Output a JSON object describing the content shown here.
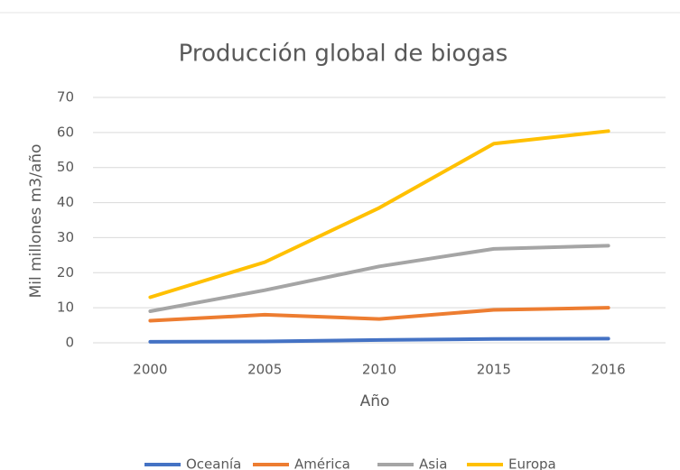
{
  "chart_data": {
    "type": "line",
    "title": "Producción global de biogas",
    "x_label": "Año",
    "y_label": "Mil millones  m3/año",
    "categories": [
      "2000",
      "2005",
      "2010",
      "2015",
      "2016"
    ],
    "series": [
      {
        "name": "Oceanía",
        "color": "#4472c4",
        "values": [
          0.3,
          0.4,
          0.8,
          1.1,
          1.2
        ]
      },
      {
        "name": "América",
        "color": "#ed7d31",
        "values": [
          6.3,
          8.0,
          6.8,
          9.4,
          10.0
        ]
      },
      {
        "name": "Asia",
        "color": "#a5a5a5",
        "values": [
          9.0,
          15.0,
          21.8,
          26.8,
          27.7
        ]
      },
      {
        "name": "Europa",
        "color": "#ffc000",
        "values": [
          13.0,
          23.0,
          38.5,
          56.8,
          60.4
        ]
      }
    ],
    "ylim": [
      0,
      70
    ],
    "yticks": [
      0,
      10,
      20,
      30,
      40,
      50,
      60,
      70
    ],
    "grid": true,
    "legend": "bottom"
  }
}
